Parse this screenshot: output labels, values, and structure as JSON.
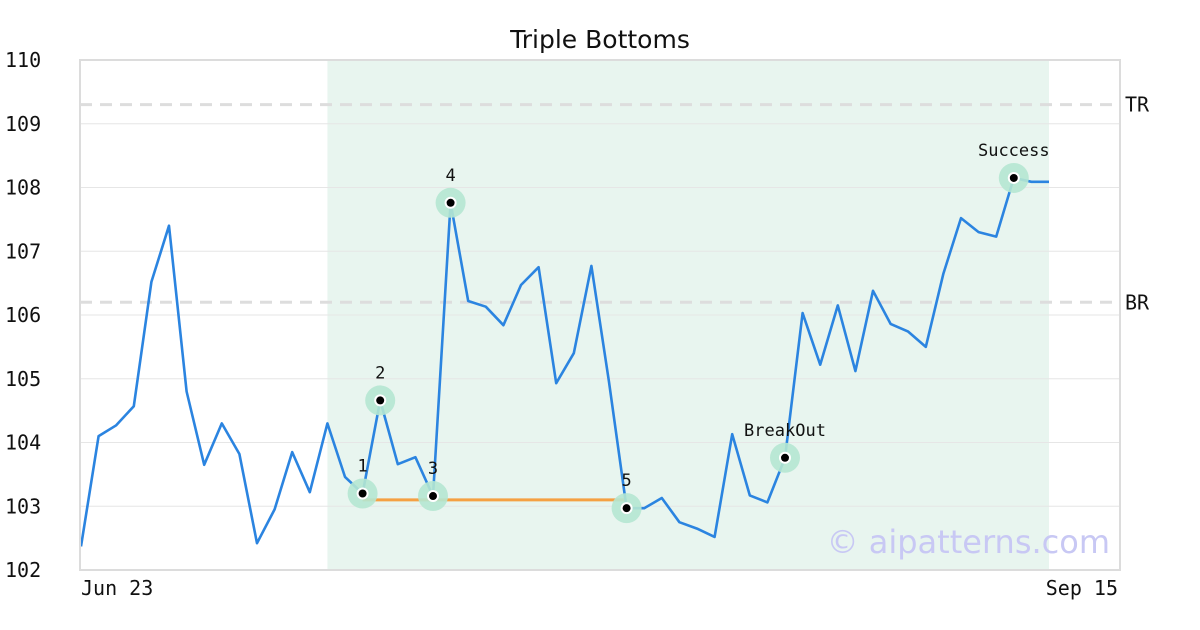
{
  "chart_data": {
    "type": "line",
    "title": "Triple Bottoms",
    "xlabel": "",
    "ylabel": "",
    "ylim": [
      102,
      110
    ],
    "y_ticks": [
      102,
      103,
      104,
      105,
      106,
      107,
      108,
      109,
      110
    ],
    "x_tick_labels": [
      "Jun 23",
      "Sep 15"
    ],
    "grid": "horizontal",
    "series": [
      {
        "color": "#2b84e0",
        "values": [
          102.37,
          104.1,
          104.27,
          104.57,
          106.52,
          107.4,
          104.8,
          103.65,
          104.3,
          103.82,
          102.42,
          102.95,
          103.85,
          103.22,
          104.3,
          103.46,
          103.2,
          104.66,
          103.66,
          103.77,
          103.16,
          107.76,
          106.22,
          106.13,
          105.84,
          106.47,
          106.75,
          104.93,
          105.4,
          106.77,
          104.95,
          102.97,
          102.97,
          103.13,
          102.75,
          102.65,
          102.52,
          104.13,
          103.17,
          103.06,
          103.76,
          106.03,
          105.22,
          106.15,
          105.12,
          106.38,
          105.86,
          105.74,
          105.5,
          106.65,
          107.52,
          107.3,
          107.23,
          108.15,
          108.09,
          108.09
        ]
      }
    ],
    "shaded_region": {
      "x_start": 14,
      "x_end": 55,
      "color": "#e8f5ef"
    },
    "reference_lines": [
      {
        "label": "TR",
        "y": 109.3,
        "style": "dashed",
        "color": "#dddddd"
      },
      {
        "label": "BR",
        "y": 106.2,
        "style": "dashed",
        "color": "#dddddd"
      }
    ],
    "support_line": {
      "x_start": 16,
      "x_end": 31,
      "y": 103.1,
      "color": "#f5a043"
    },
    "markers": [
      {
        "label": "1",
        "x": 16,
        "y": 103.2,
        "label_pos": "above"
      },
      {
        "label": "2",
        "x": 17,
        "y": 104.66,
        "label_pos": "above"
      },
      {
        "label": "3",
        "x": 20,
        "y": 103.16,
        "label_pos": "above"
      },
      {
        "label": "4",
        "x": 21,
        "y": 107.76,
        "label_pos": "above"
      },
      {
        "label": "5",
        "x": 31,
        "y": 102.97,
        "label_pos": "above"
      },
      {
        "label": "BreakOut",
        "x": 40,
        "y": 103.76,
        "label_pos": "above"
      },
      {
        "label": "Success",
        "x": 53,
        "y": 108.15,
        "label_pos": "above"
      }
    ],
    "watermark": "© aipatterns.com"
  }
}
